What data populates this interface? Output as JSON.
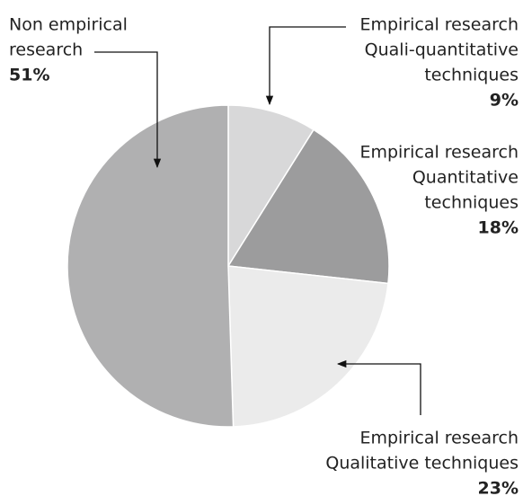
{
  "chart_data": {
    "type": "pie",
    "labels": [
      [
        "Empirical research",
        "Quali-quantitative",
        "techniques"
      ],
      [
        "Empirical research",
        "Quantitative",
        "techniques"
      ],
      [
        "Empirical research",
        "Qualitative techniques"
      ],
      [
        "Non empirical",
        "research"
      ]
    ],
    "values": [
      9,
      18,
      23,
      51
    ],
    "value_labels": [
      "9%",
      "18%",
      "23%",
      "51%"
    ],
    "colors": [
      "#d8d8d9",
      "#9c9c9d",
      "#ebebeb",
      "#b0b0b1"
    ]
  }
}
